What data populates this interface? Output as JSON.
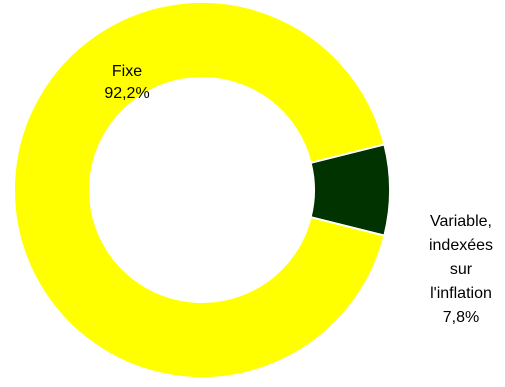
{
  "chart_data": {
    "type": "pie",
    "donut": true,
    "title": "",
    "series": [
      {
        "slices": [
          {
            "key": "fixe",
            "label_lines": [
              "Fixe"
            ],
            "value_label": "92,2%",
            "value": 92.2,
            "color": "#FFFF00"
          },
          {
            "key": "variable",
            "label_lines": [
              "Variable,",
              "indexées",
              "sur",
              "l'inflation"
            ],
            "value_label": "7,8%",
            "value": 7.8,
            "color": "#003300"
          }
        ]
      }
    ],
    "legend": "none",
    "slice_border_color": "#FFFFFF"
  }
}
